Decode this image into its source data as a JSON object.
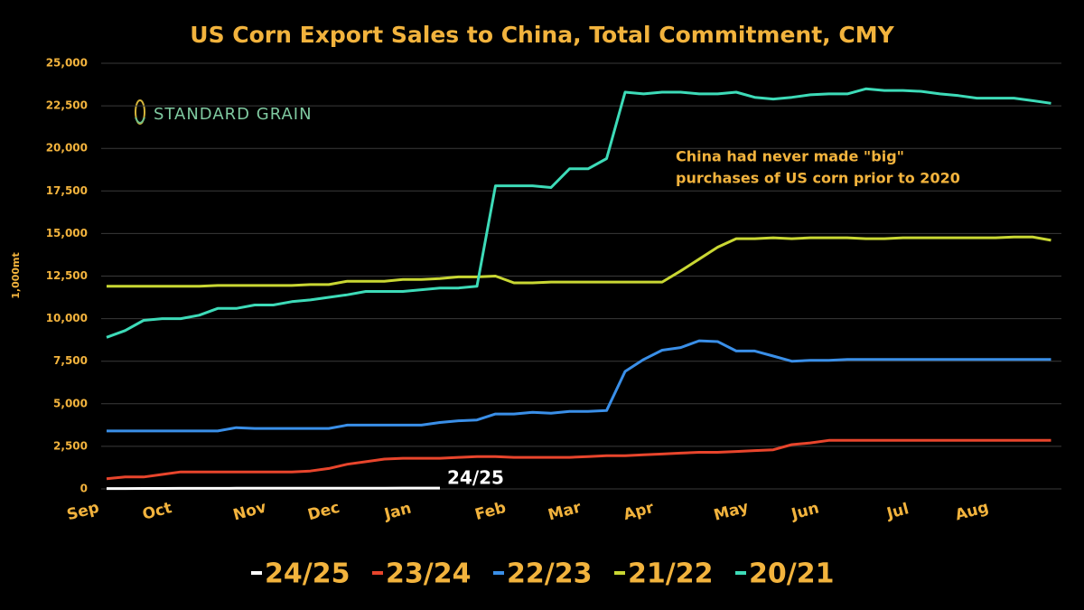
{
  "chart_data": {
    "type": "line",
    "title": "US Corn Export Sales to China, Total Commitment, CMY",
    "y_label": "1,000mt",
    "logo_text": "STANDARD GRAIN",
    "annotation": [
      "China had never made \"big\"",
      "purchases of US corn prior to 2020"
    ],
    "categories": [
      "Sep",
      null,
      null,
      null,
      "Oct",
      null,
      null,
      null,
      null,
      "Nov",
      null,
      null,
      null,
      "Dec",
      null,
      null,
      null,
      "Jan",
      null,
      null,
      null,
      null,
      "Feb",
      null,
      null,
      null,
      "Mar",
      null,
      null,
      null,
      "Apr",
      null,
      null,
      null,
      null,
      "May",
      null,
      null,
      null,
      "Jun",
      null,
      null,
      null,
      null,
      "Jul",
      null,
      null,
      null,
      "Aug",
      null,
      null,
      null
    ],
    "ylim": [
      0,
      25000
    ],
    "yticks": [
      0,
      {
        "value": 2500,
        "label": "2,500"
      },
      {
        "value": 5000,
        "label": "5,000"
      },
      {
        "value": 7500,
        "label": "7,500"
      },
      {
        "value": 10000,
        "label": "10,000"
      },
      {
        "value": 12500,
        "label": "12,500"
      },
      {
        "value": 15000,
        "label": "15,000"
      },
      {
        "value": 17500,
        "label": "17,500"
      },
      {
        "value": 20000,
        "label": "20,000"
      },
      {
        "value": 22500,
        "label": "22,500"
      },
      {
        "value": 25000,
        "label": "25,000"
      }
    ],
    "grid": true,
    "series": [
      {
        "name": "24/25",
        "color": "#ffffff",
        "values": [
          20,
          20,
          25,
          25,
          30,
          30,
          30,
          35,
          35,
          35,
          40,
          40,
          40,
          45,
          45,
          45,
          50,
          50,
          50,
          null,
          null,
          null,
          null,
          null,
          null,
          null,
          null,
          null,
          null,
          null,
          null,
          null,
          null,
          null,
          null,
          null,
          null,
          null,
          null,
          null,
          null,
          null,
          null,
          null,
          null,
          null,
          null,
          null,
          null,
          null,
          null,
          null
        ]
      },
      {
        "name": "23/24",
        "color": "#e8452c",
        "values": [
          600,
          700,
          700,
          850,
          1000,
          1000,
          1000,
          1000,
          1000,
          1000,
          1000,
          1050,
          1200,
          1450,
          1600,
          1750,
          1800,
          1800,
          1800,
          1850,
          1900,
          1900,
          1850,
          1850,
          1850,
          1850,
          1900,
          1950,
          1950,
          2000,
          2050,
          2100,
          2150,
          2150,
          2200,
          2250,
          2300,
          2600,
          2700,
          2850,
          2850,
          2850,
          2850,
          2850,
          2850,
          2850,
          2850,
          2850,
          2850,
          2850,
          2850,
          2850
        ]
      },
      {
        "name": "22/23",
        "color": "#3a8fe8",
        "values": [
          3400,
          3400,
          3400,
          3400,
          3400,
          3400,
          3400,
          3600,
          3550,
          3550,
          3550,
          3550,
          3550,
          3750,
          3750,
          3750,
          3750,
          3750,
          3900,
          4000,
          4050,
          4400,
          4400,
          4500,
          4450,
          4550,
          4550,
          4600,
          6900,
          7600,
          8150,
          8300,
          8700,
          8650,
          8100,
          8100,
          7800,
          7500,
          7550,
          7550,
          7600,
          7600,
          7600,
          7600,
          7600,
          7600,
          7600,
          7600,
          7600,
          7600,
          7600,
          7600
        ]
      },
      {
        "name": "21/22",
        "color": "#c9d733",
        "values": [
          11900,
          11900,
          11900,
          11900,
          11900,
          11900,
          11950,
          11950,
          11950,
          11950,
          11950,
          12000,
          12000,
          12200,
          12200,
          12200,
          12300,
          12300,
          12350,
          12450,
          12450,
          12500,
          12100,
          12100,
          12150,
          12150,
          12150,
          12150,
          12150,
          12150,
          12150,
          12800,
          13500,
          14200,
          14700,
          14700,
          14750,
          14700,
          14750,
          14750,
          14750,
          14700,
          14700,
          14750,
          14750,
          14750,
          14750,
          14750,
          14750,
          14800,
          14800,
          14600
        ]
      },
      {
        "name": "20/21",
        "color": "#3ddbb8",
        "values": [
          8900,
          9300,
          9900,
          10000,
          10000,
          10200,
          10600,
          10600,
          10800,
          10800,
          11000,
          11100,
          11250,
          11400,
          11600,
          11600,
          11600,
          11700,
          11800,
          11800,
          11900,
          17800,
          17800,
          17800,
          17700,
          18800,
          18800,
          19400,
          23300,
          23200,
          23300,
          23300,
          23200,
          23200,
          23300,
          23000,
          22900,
          23000,
          23150,
          23200,
          23200,
          23500,
          23400,
          23400,
          23350,
          23200,
          23100,
          22950,
          22950,
          22950,
          22800,
          22650
        ]
      }
    ]
  }
}
